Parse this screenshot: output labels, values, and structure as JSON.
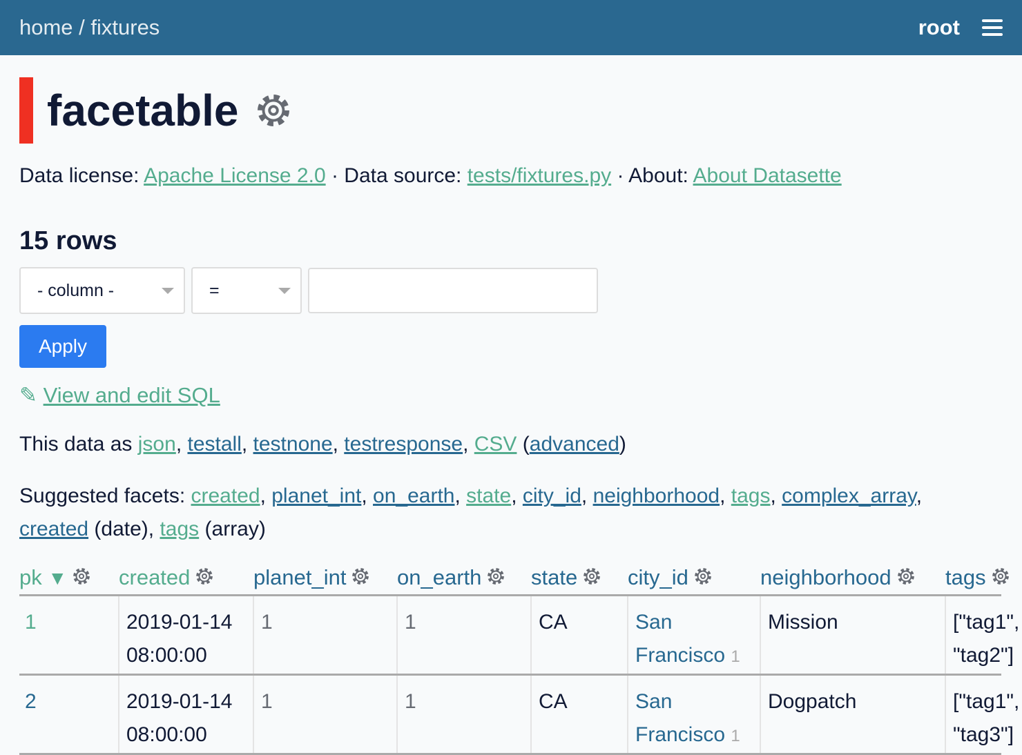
{
  "header": {
    "home": "home",
    "sep": " / ",
    "db": "fixtures",
    "user": "root"
  },
  "title": "facetable",
  "colors": {
    "header": "#2a6890",
    "accent_bar": "#ef3022",
    "link_visited": "#54ac8e",
    "link": "#276890",
    "apply": "#2b7bf0"
  },
  "meta": {
    "license_label": "Data license: ",
    "license": "Apache License 2.0",
    "source_label": " · Data source: ",
    "source": "tests/fixtures.py",
    "about_label": " · About: ",
    "about": "About Datasette"
  },
  "count": "15 rows",
  "filter": {
    "column": "- column -",
    "op": "=",
    "value": "",
    "apply": "Apply"
  },
  "sql_link": "View and edit SQL",
  "export": {
    "prefix": "This data as ",
    "links": [
      "json",
      "testall",
      "testnone",
      "testresponse",
      "CSV"
    ],
    "advanced": "advanced"
  },
  "facets": {
    "prefix": "Suggested facets: ",
    "items": [
      "created",
      "planet_int",
      "on_earth",
      "state",
      "city_id",
      "neighborhood",
      "tags",
      "complex_array",
      "created",
      "tags"
    ],
    "date": " (date)",
    "array": " (array)"
  },
  "table": {
    "columns": [
      "pk",
      "created",
      "planet_int",
      "on_earth",
      "state",
      "city_id",
      "neighborhood",
      "tags"
    ],
    "rows": [
      {
        "pk": "1",
        "created1": "2019-01-14",
        "created2": "08:00:00",
        "planet_int": "1",
        "on_earth": "1",
        "state": "CA",
        "city1": "San",
        "city2": "Francisco",
        "city_fk": "1",
        "neighborhood": "Mission",
        "tags1": "[\"tag1\",",
        "tags2": "\"tag2\"]"
      },
      {
        "pk": "2",
        "created1": "2019-01-14",
        "created2": "08:00:00",
        "planet_int": "1",
        "on_earth": "1",
        "state": "CA",
        "city1": "San",
        "city2": "Francisco",
        "city_fk": "1",
        "neighborhood": "Dogpatch",
        "tags1": "[\"tag1\",",
        "tags2": "\"tag3\"]"
      }
    ]
  }
}
